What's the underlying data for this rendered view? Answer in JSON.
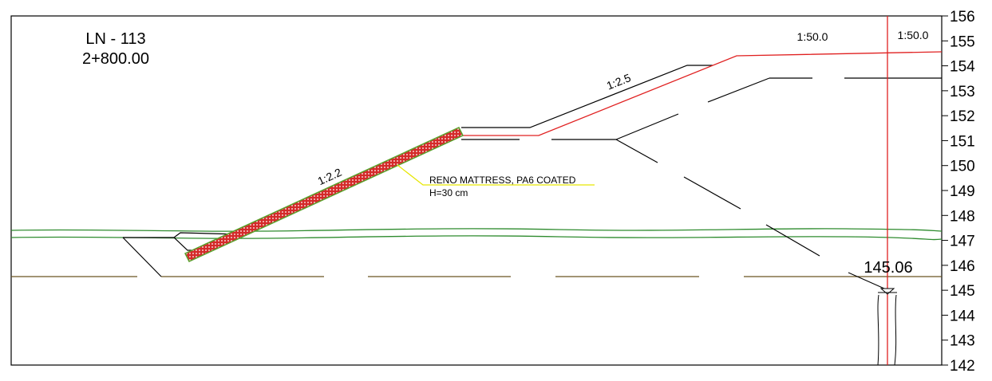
{
  "title": {
    "line": "LN - 113",
    "station": "2+800.00"
  },
  "axis": {
    "min": 142,
    "max": 156,
    "ticks": [
      "156",
      "155",
      "154",
      "153",
      "152",
      "151",
      "150",
      "149",
      "148",
      "147",
      "146",
      "145",
      "144",
      "143",
      "142"
    ]
  },
  "labels": {
    "slope_upper_left": "1:50.0",
    "slope_upper_right": "1:50.0",
    "slope_middle": "1:2.5",
    "slope_lower": "1:2.2",
    "mattress_name": "RENO MATTRESS, PA6 COATED",
    "mattress_thickness": "H=30 cm",
    "water_level": "145.06"
  },
  "colors": {
    "existing_ground": "#000000",
    "design_profile": "#e02020",
    "water_line": "#2e8b2e",
    "bed_line": "#6b5420",
    "mattress_fill": "#d42a2a",
    "mattress_border": "#5aa02c",
    "leader_line": "#e6e600"
  }
}
